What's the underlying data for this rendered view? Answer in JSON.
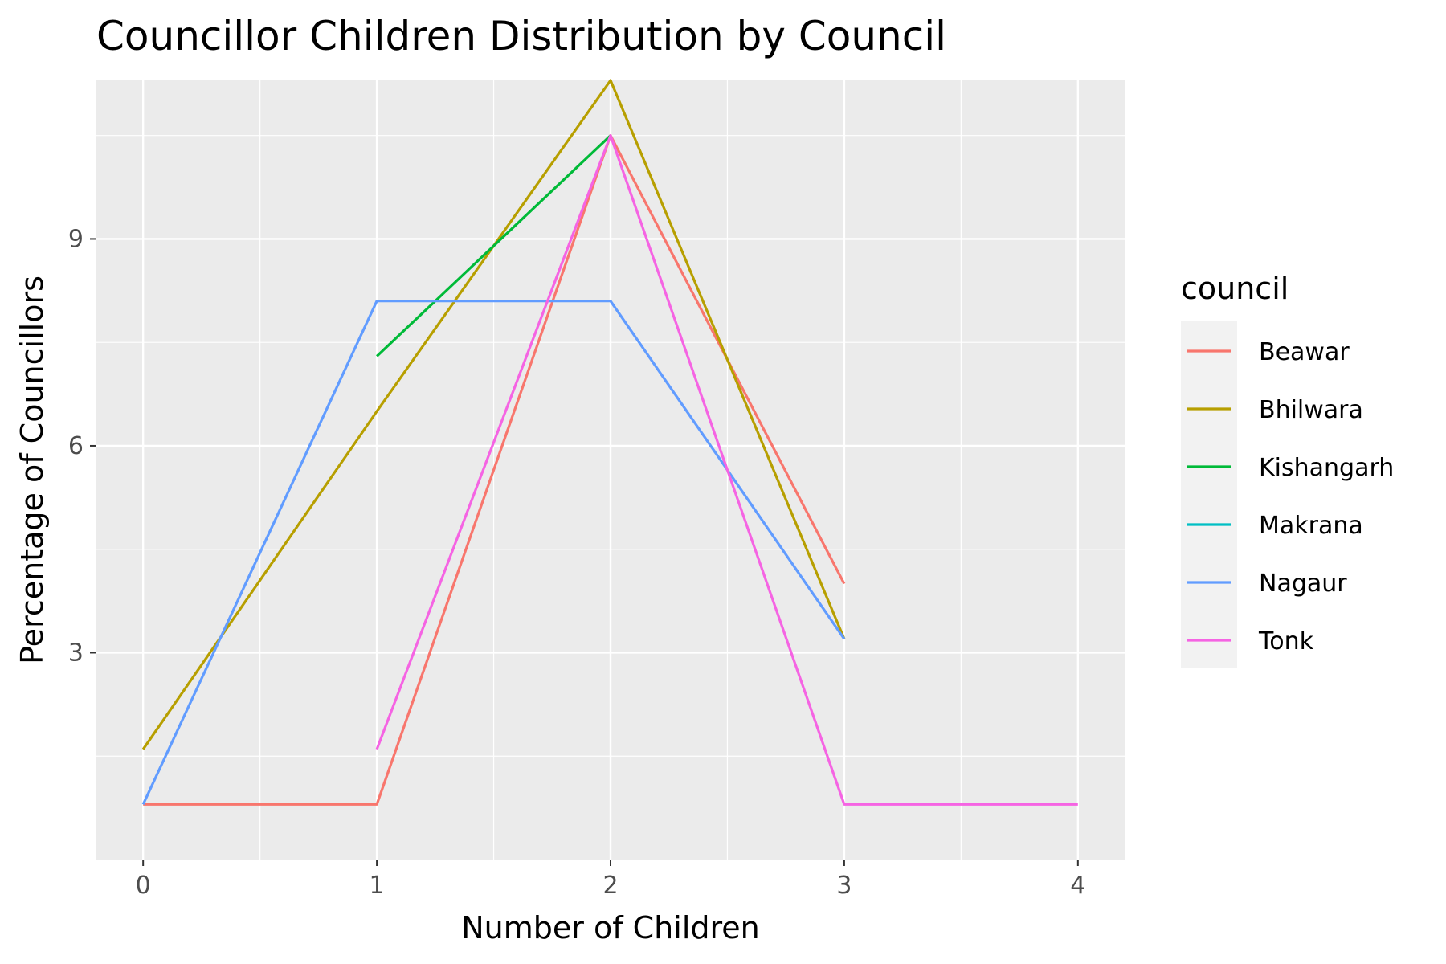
{
  "chart_data": {
    "type": "line",
    "title": "Councillor Children Distribution by Council",
    "xlabel": "Number of Children",
    "ylabel": "Percentage of Councillors",
    "xlim": [
      -0.2,
      4.2
    ],
    "ylim": [
      0.0,
      11.3
    ],
    "xticks": [
      0,
      1,
      2,
      3,
      4
    ],
    "yticks": [
      3,
      6,
      9
    ],
    "grid": true,
    "legend": {
      "title": "council",
      "position": "right"
    },
    "series": [
      {
        "name": "Beawar",
        "color": "#F8766D",
        "x": [
          0,
          1,
          2,
          3
        ],
        "y": [
          0.8,
          0.8,
          10.5,
          4.0
        ]
      },
      {
        "name": "Bhilwara",
        "color": "#B79F00",
        "x": [
          0,
          1,
          2,
          3
        ],
        "y": [
          1.6,
          6.5,
          11.3,
          3.2
        ]
      },
      {
        "name": "Kishangarh",
        "color": "#00BA38",
        "x": [
          1,
          2
        ],
        "y": [
          7.3,
          10.5
        ]
      },
      {
        "name": "Makrana",
        "color": "#00BFC4",
        "x": [],
        "y": []
      },
      {
        "name": "Nagaur",
        "color": "#619CFF",
        "x": [
          0,
          1,
          2,
          3
        ],
        "y": [
          0.8,
          8.1,
          8.1,
          3.2
        ]
      },
      {
        "name": "Tonk",
        "color": "#F564E3",
        "x": [
          1,
          2,
          3,
          4
        ],
        "y": [
          1.6,
          10.5,
          0.8,
          0.8
        ]
      }
    ]
  }
}
